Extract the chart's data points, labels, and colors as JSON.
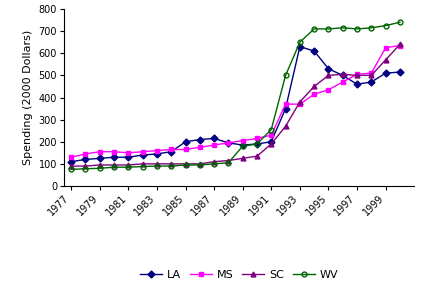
{
  "years": [
    1977,
    1978,
    1979,
    1980,
    1981,
    1982,
    1983,
    1984,
    1985,
    1986,
    1987,
    1988,
    1989,
    1990,
    1991,
    1992,
    1993,
    1994,
    1995,
    1996,
    1997,
    1998,
    1999,
    2000
  ],
  "LA": [
    110,
    120,
    125,
    130,
    130,
    140,
    145,
    155,
    200,
    210,
    215,
    195,
    185,
    190,
    200,
    350,
    630,
    610,
    530,
    500,
    460,
    470,
    510,
    515
  ],
  "MS": [
    130,
    145,
    155,
    155,
    150,
    155,
    160,
    165,
    165,
    175,
    185,
    195,
    205,
    215,
    230,
    370,
    370,
    415,
    435,
    470,
    505,
    510,
    625,
    635
  ],
  "SC": [
    90,
    90,
    95,
    95,
    95,
    100,
    100,
    100,
    100,
    100,
    110,
    115,
    125,
    135,
    190,
    270,
    380,
    450,
    500,
    505,
    500,
    500,
    570,
    640
  ],
  "WV": [
    75,
    78,
    80,
    85,
    85,
    88,
    90,
    90,
    95,
    95,
    100,
    105,
    180,
    190,
    255,
    500,
    650,
    710,
    710,
    715,
    710,
    715,
    725,
    740
  ],
  "LA_color": "#000080",
  "MS_color": "#FF00FF",
  "SC_color": "#800080",
  "WV_color": "#006400",
  "ylabel": "Spending (2000 Dollars)",
  "ylim": [
    0,
    800
  ],
  "yticks": [
    0,
    100,
    200,
    300,
    400,
    500,
    600,
    700,
    800
  ],
  "xtick_years": [
    1977,
    1979,
    1981,
    1983,
    1985,
    1987,
    1989,
    1991,
    1993,
    1995,
    1997,
    1999
  ],
  "background_color": "#ffffff",
  "tick_fontsize": 7,
  "label_fontsize": 8,
  "legend_fontsize": 8
}
